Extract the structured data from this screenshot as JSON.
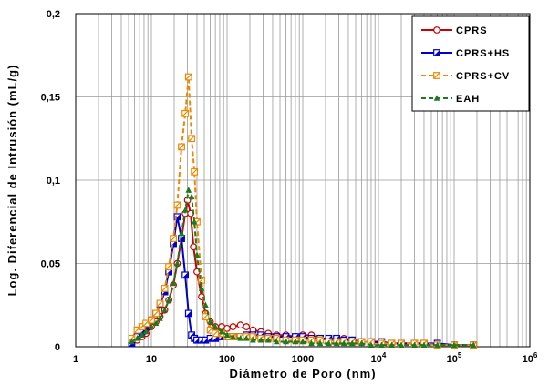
{
  "chart_data": {
    "type": "line",
    "xlabel": "Diámetro de Poro (nm)",
    "ylabel": "Log. Diferencial de Intrusión (mL/g)",
    "x_scale": "log",
    "xlim": [
      1,
      1000000
    ],
    "ylim": [
      0,
      0.2
    ],
    "grid": true,
    "legend_position": "top-right",
    "x_tick_labels": [
      {
        "value": 1,
        "base": "1",
        "exp": ""
      },
      {
        "value": 10,
        "base": "10",
        "exp": ""
      },
      {
        "value": 100,
        "base": "100",
        "exp": ""
      },
      {
        "value": 1000,
        "base": "1000",
        "exp": ""
      },
      {
        "value": 10000,
        "base": "10",
        "exp": "4"
      },
      {
        "value": 100000,
        "base": "10",
        "exp": "5"
      },
      {
        "value": 1000000,
        "base": "10",
        "exp": "6"
      }
    ],
    "y_tick_labels": [
      {
        "value": 0,
        "label": "0"
      },
      {
        "value": 0.05,
        "label": "0,05"
      },
      {
        "value": 0.1,
        "label": "0,1"
      },
      {
        "value": 0.15,
        "label": "0,15"
      },
      {
        "value": 0.2,
        "label": "0,2"
      }
    ],
    "series": [
      {
        "name": "CPRS",
        "color": "#cc0000",
        "dash": "solid",
        "marker": "circle",
        "x": [
          5.5,
          6.5,
          7.5,
          8.5,
          10,
          11.5,
          13,
          15,
          17,
          19.5,
          22,
          25,
          28,
          30,
          33,
          36,
          40,
          46,
          52,
          60,
          70,
          85,
          100,
          120,
          150,
          180,
          220,
          280,
          350,
          450,
          600,
          800,
          1000,
          1300,
          1700,
          2200,
          2800,
          3500,
          4500,
          6000,
          8000,
          11000,
          15000,
          20000,
          30000,
          40000,
          60000,
          100000,
          180000
        ],
        "y": [
          0.002,
          0.004,
          0.006,
          0.008,
          0.012,
          0.015,
          0.018,
          0.022,
          0.028,
          0.037,
          0.05,
          0.065,
          0.08,
          0.088,
          0.08,
          0.06,
          0.045,
          0.03,
          0.02,
          0.015,
          0.012,
          0.012,
          0.011,
          0.012,
          0.013,
          0.012,
          0.01,
          0.009,
          0.008,
          0.007,
          0.007,
          0.006,
          0.007,
          0.007,
          0.005,
          0.004,
          0.004,
          0.005,
          0.004,
          0.003,
          0.003,
          0.002,
          0.002,
          0.002,
          0.002,
          0.002,
          0.001,
          0.001,
          0.001
        ]
      },
      {
        "name": "CPRS+HS",
        "color": "#0000cc",
        "dash": "solid",
        "marker": "square-half",
        "x": [
          5.5,
          6.5,
          7.5,
          8.5,
          10,
          11.5,
          13,
          15,
          17,
          19.5,
          22,
          25,
          28,
          31,
          34,
          37,
          40,
          46,
          52,
          60,
          70,
          85,
          100,
          120,
          150,
          180,
          220,
          280,
          350,
          450,
          600,
          800,
          1000,
          1300,
          1700,
          2200,
          2800,
          3500,
          4500,
          6000,
          8000,
          11000,
          15000,
          20000,
          30000,
          40000,
          60000,
          100000,
          180000
        ],
        "y": [
          0.002,
          0.006,
          0.009,
          0.012,
          0.016,
          0.02,
          0.025,
          0.033,
          0.045,
          0.062,
          0.078,
          0.065,
          0.043,
          0.02,
          0.007,
          0.005,
          0.004,
          0.004,
          0.004,
          0.005,
          0.005,
          0.006,
          0.006,
          0.006,
          0.006,
          0.007,
          0.007,
          0.007,
          0.006,
          0.006,
          0.006,
          0.006,
          0.006,
          0.005,
          0.005,
          0.005,
          0.005,
          0.004,
          0.004,
          0.003,
          0.003,
          0.003,
          0.002,
          0.002,
          0.002,
          0.002,
          0.002,
          0.001,
          0.001
        ]
      },
      {
        "name": "CPRS+CV",
        "color": "#ee8800",
        "dash": "dashed",
        "marker": "square-diag",
        "x": [
          5.5,
          6.5,
          7.5,
          8.5,
          10,
          11.5,
          13,
          15,
          17,
          19.5,
          22,
          25,
          28,
          31,
          34,
          37,
          40,
          46,
          52,
          60,
          70,
          85,
          100,
          120,
          150,
          180,
          220,
          280,
          350,
          450,
          600,
          800,
          1000,
          1300,
          1700,
          2200,
          2800,
          3500,
          4500,
          6000,
          8000,
          11000,
          15000,
          20000,
          30000,
          40000,
          60000,
          100000,
          180000
        ],
        "y": [
          0.005,
          0.01,
          0.012,
          0.014,
          0.016,
          0.02,
          0.026,
          0.035,
          0.048,
          0.065,
          0.085,
          0.12,
          0.14,
          0.162,
          0.125,
          0.105,
          0.075,
          0.04,
          0.018,
          0.01,
          0.008,
          0.008,
          0.006,
          0.006,
          0.006,
          0.006,
          0.006,
          0.005,
          0.005,
          0.005,
          0.004,
          0.004,
          0.004,
          0.004,
          0.004,
          0.003,
          0.003,
          0.003,
          0.003,
          0.003,
          0.003,
          0.002,
          0.002,
          0.002,
          0.002,
          0.002,
          0.001,
          0.001,
          0.001
        ]
      },
      {
        "name": "EAH",
        "color": "#1e7a1e",
        "dash": "dashed",
        "marker": "triangle",
        "x": [
          5.5,
          6.5,
          7.5,
          8.5,
          10,
          11.5,
          13,
          15,
          17,
          19.5,
          22,
          25,
          28,
          31,
          34,
          37,
          40,
          46,
          52,
          60,
          70,
          85,
          100,
          120,
          150,
          180,
          220,
          280,
          350,
          450,
          600,
          800,
          1000,
          1300,
          1700,
          2200,
          2800,
          3500,
          4500,
          6000,
          8000,
          11000,
          15000,
          20000,
          30000,
          40000,
          60000,
          100000,
          180000
        ],
        "y": [
          0.003,
          0.005,
          0.007,
          0.009,
          0.012,
          0.014,
          0.017,
          0.022,
          0.028,
          0.038,
          0.05,
          0.068,
          0.082,
          0.094,
          0.09,
          0.075,
          0.055,
          0.035,
          0.025,
          0.015,
          0.012,
          0.009,
          0.007,
          0.006,
          0.005,
          0.005,
          0.004,
          0.004,
          0.004,
          0.003,
          0.003,
          0.003,
          0.003,
          0.002,
          0.002,
          0.002,
          0.002,
          0.002,
          0.002,
          0.002,
          0.001,
          0.001,
          0.001,
          0.001,
          0.001,
          0.001,
          0.001,
          0.001,
          0.001
        ]
      }
    ]
  }
}
